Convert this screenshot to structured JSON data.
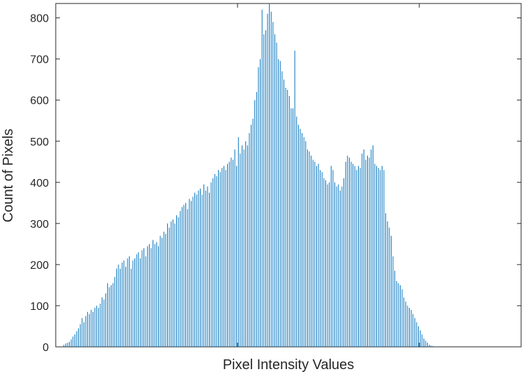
{
  "chart_data": {
    "type": "bar",
    "title": "",
    "xlabel": "Pixel Intensity Values",
    "ylabel": "Count of Pixels",
    "x_tick_labels": [],
    "ylim": [
      0,
      835
    ],
    "yticks": [
      0,
      100,
      200,
      300,
      400,
      500,
      600,
      700,
      800
    ],
    "xlim": [
      0,
      256
    ],
    "grid": false,
    "bar_color": "#0072bd",
    "series": [
      {
        "x_start": 0,
        "values": [
          0,
          0,
          0,
          0,
          5,
          8,
          10,
          12,
          18,
          25,
          30,
          38,
          45,
          55,
          70,
          60,
          75,
          85,
          80,
          90,
          85,
          95,
          100,
          95,
          105,
          120,
          115,
          130,
          155,
          145,
          150,
          155,
          170,
          190,
          200,
          190,
          205,
          210,
          195,
          215,
          220,
          190,
          210,
          215,
          225,
          230,
          215,
          235,
          240,
          220,
          245,
          250,
          240,
          260,
          250,
          255,
          245,
          270,
          265,
          280,
          275,
          300,
          290,
          305,
          310,
          300,
          320,
          315,
          330,
          340,
          345,
          350,
          335,
          360,
          355,
          365,
          375,
          370,
          380,
          385,
          370,
          395,
          380,
          390,
          375,
          400,
          410,
          420,
          415,
          430,
          425,
          435,
          440,
          430,
          445,
          450,
          460,
          455,
          480,
          440,
          510,
          470,
          490,
          480,
          500,
          490,
          520,
          540,
          555,
          600,
          620,
          680,
          700,
          820,
          760,
          770,
          810,
          835,
          815,
          790,
          760,
          740,
          700,
          695,
          670,
          650,
          630,
          625,
          610,
          580,
          580,
          720,
          560,
          540,
          530,
          520,
          510,
          500,
          480,
          475,
          465,
          455,
          450,
          440,
          445,
          430,
          425,
          410,
          405,
          395,
          400,
          440,
          430,
          400,
          390,
          395,
          380,
          390,
          410,
          450,
          465,
          460,
          450,
          445,
          440,
          430,
          440,
          435,
          470,
          480,
          455,
          465,
          460,
          480,
          490,
          445,
          440,
          435,
          430,
          440,
          430,
          325,
          305,
          290,
          270,
          220,
          185,
          160,
          155,
          150,
          140,
          120,
          110,
          100,
          95,
          90,
          80,
          70,
          60,
          50,
          40,
          30,
          20,
          15,
          10,
          5,
          3,
          2,
          1,
          1,
          0,
          0,
          0,
          0,
          0,
          0,
          0,
          0,
          0,
          0,
          0,
          0,
          0,
          0,
          0,
          0,
          0,
          0,
          0,
          0,
          0,
          0,
          0,
          0,
          0,
          0,
          0,
          0,
          0,
          0,
          0,
          0,
          0,
          0,
          0,
          0,
          0,
          0,
          0,
          0,
          0,
          0,
          0,
          0,
          0,
          0,
          0,
          0,
          0,
          0,
          0,
          0,
          0,
          0,
          0,
          0,
          0,
          0,
          0,
          0,
          0,
          0,
          0
        ]
      }
    ]
  }
}
